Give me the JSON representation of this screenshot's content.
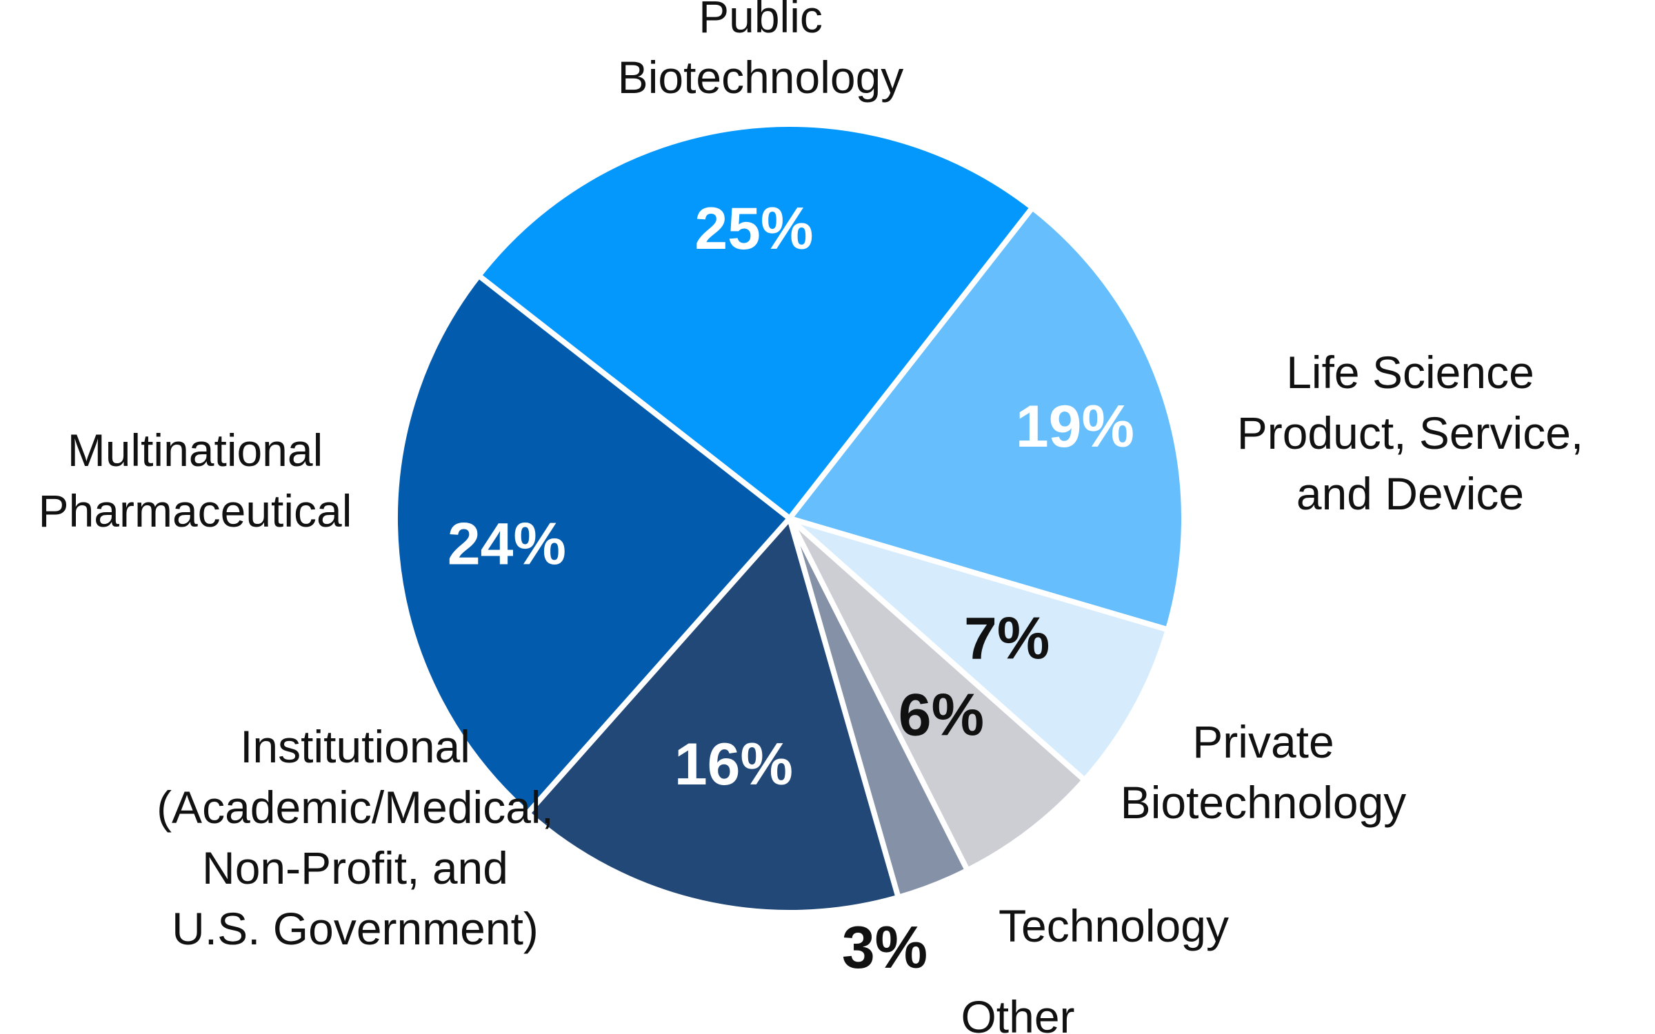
{
  "chart_data": {
    "type": "pie",
    "slices": [
      {
        "name": "Public Biotechnology",
        "label_lines": [
          "Public",
          "Biotechnology"
        ],
        "value": 25,
        "value_label": "25%",
        "color": "#0598FC",
        "value_label_color": "#FFFFFF"
      },
      {
        "name": "Life Science Product, Service, and Device",
        "label_lines": [
          "Life Science",
          "Product, Service,",
          "and Device"
        ],
        "value": 19,
        "value_label": "19%",
        "color": "#66BFFC",
        "value_label_color": "#FFFFFF"
      },
      {
        "name": "Private Biotechnology",
        "label_lines": [
          "Private",
          "Biotechnology"
        ],
        "value": 7,
        "value_label": "7%",
        "color": "#D6ECFC",
        "value_label_color": "#111111"
      },
      {
        "name": "Technology",
        "label_lines": [
          "Technology"
        ],
        "value": 6,
        "value_label": "6%",
        "color": "#CDCED4",
        "value_label_color": "#111111"
      },
      {
        "name": "Other",
        "label_lines": [
          "Other"
        ],
        "value": 3,
        "value_label": "3%",
        "color": "#8591A6",
        "value_label_color": "#111111"
      },
      {
        "name": "Institutional (Academic/Medical, Non-Profit, and U.S. Government)",
        "label_lines": [
          "Institutional",
          "(Academic/Medical,",
          "Non-Profit, and",
          "U.S. Government)"
        ],
        "value": 16,
        "value_label": "16%",
        "color": "#224878",
        "value_label_color": "#FFFFFF"
      },
      {
        "name": "Multinational Pharmaceutical",
        "label_lines": [
          "Multinational",
          "Pharmaceutical"
        ],
        "value": 24,
        "value_label": "24%",
        "color": "#025BAC",
        "value_label_color": "#FFFFFF"
      }
    ]
  }
}
